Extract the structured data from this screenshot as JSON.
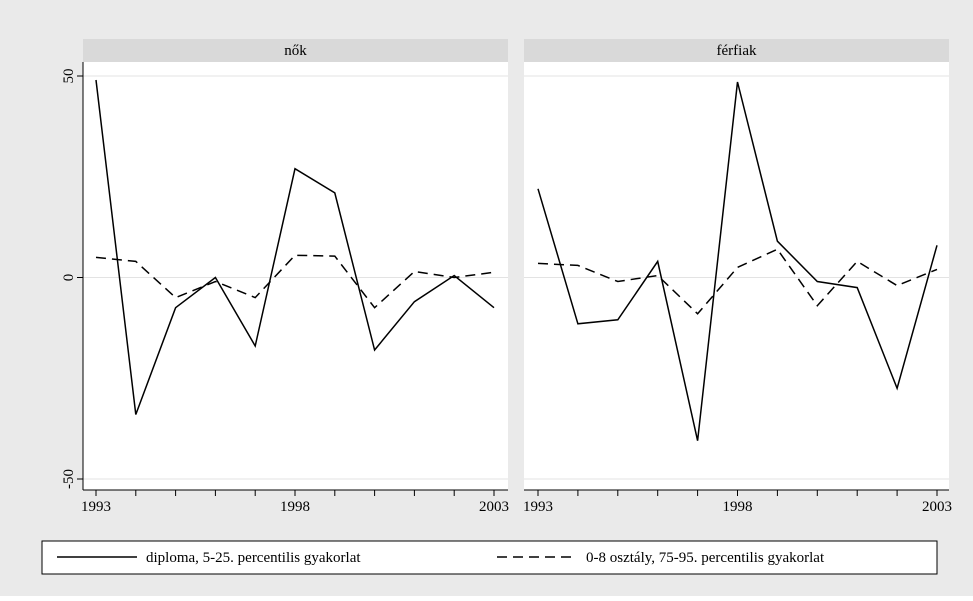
{
  "colors": {
    "outer_background": "#eaeaea",
    "plot_background": "#ffffff",
    "strip_background": "#d9d9d9",
    "gridline": "#e3e3e3",
    "line": "#000000"
  },
  "legend": {
    "position": "bottom",
    "items": [
      {
        "label": "diploma, 5-25. percentilis gyakorlat",
        "style": "solid"
      },
      {
        "label": "0-8 osztály, 75-95. percentilis gyakorlat",
        "style": "dashed"
      }
    ]
  },
  "chart_data": [
    {
      "type": "line",
      "title": "nők",
      "x": [
        1993,
        1994,
        1995,
        1996,
        1997,
        1998,
        1999,
        2000,
        2001,
        2002,
        2003
      ],
      "xticks": [
        1993,
        1998,
        2003
      ],
      "xlim": [
        1993,
        2003
      ],
      "yticks": [
        -50,
        0,
        50
      ],
      "ylim": [
        -51,
        50
      ],
      "grid": true,
      "series": [
        {
          "name": "diploma, 5-25. percentilis gyakorlat",
          "style": "solid",
          "values": [
            49,
            -34,
            -7.5,
            0,
            -17,
            27,
            21,
            -18,
            -6,
            0.5,
            -7.5
          ]
        },
        {
          "name": "0-8 osztály, 75-95. percentilis gyakorlat",
          "style": "dashed",
          "values": [
            5,
            4,
            -5,
            -1,
            -5,
            5.5,
            5.3,
            -7.5,
            1.5,
            0,
            1.3
          ]
        }
      ]
    },
    {
      "type": "line",
      "title": "férfiak",
      "x": [
        1993,
        1994,
        1995,
        1996,
        1997,
        1998,
        1999,
        2000,
        2001,
        2002,
        2003
      ],
      "xticks": [
        1993,
        1998,
        2003
      ],
      "xlim": [
        1993,
        2003
      ],
      "yticks": [
        -50,
        0,
        50
      ],
      "ylim": [
        -51,
        50
      ],
      "grid": true,
      "series": [
        {
          "name": "diploma, 5-25. percentilis gyakorlat",
          "style": "solid",
          "values": [
            22,
            -11.5,
            -10.5,
            4,
            -40.5,
            48.5,
            9,
            -1,
            -2.5,
            -27.5,
            8
          ]
        },
        {
          "name": "0-8 osztály, 75-95. percentilis gyakorlat",
          "style": "dashed",
          "values": [
            3.5,
            3,
            -1,
            0.5,
            -9,
            2.5,
            7,
            -7,
            4,
            -2,
            2
          ]
        }
      ]
    }
  ]
}
